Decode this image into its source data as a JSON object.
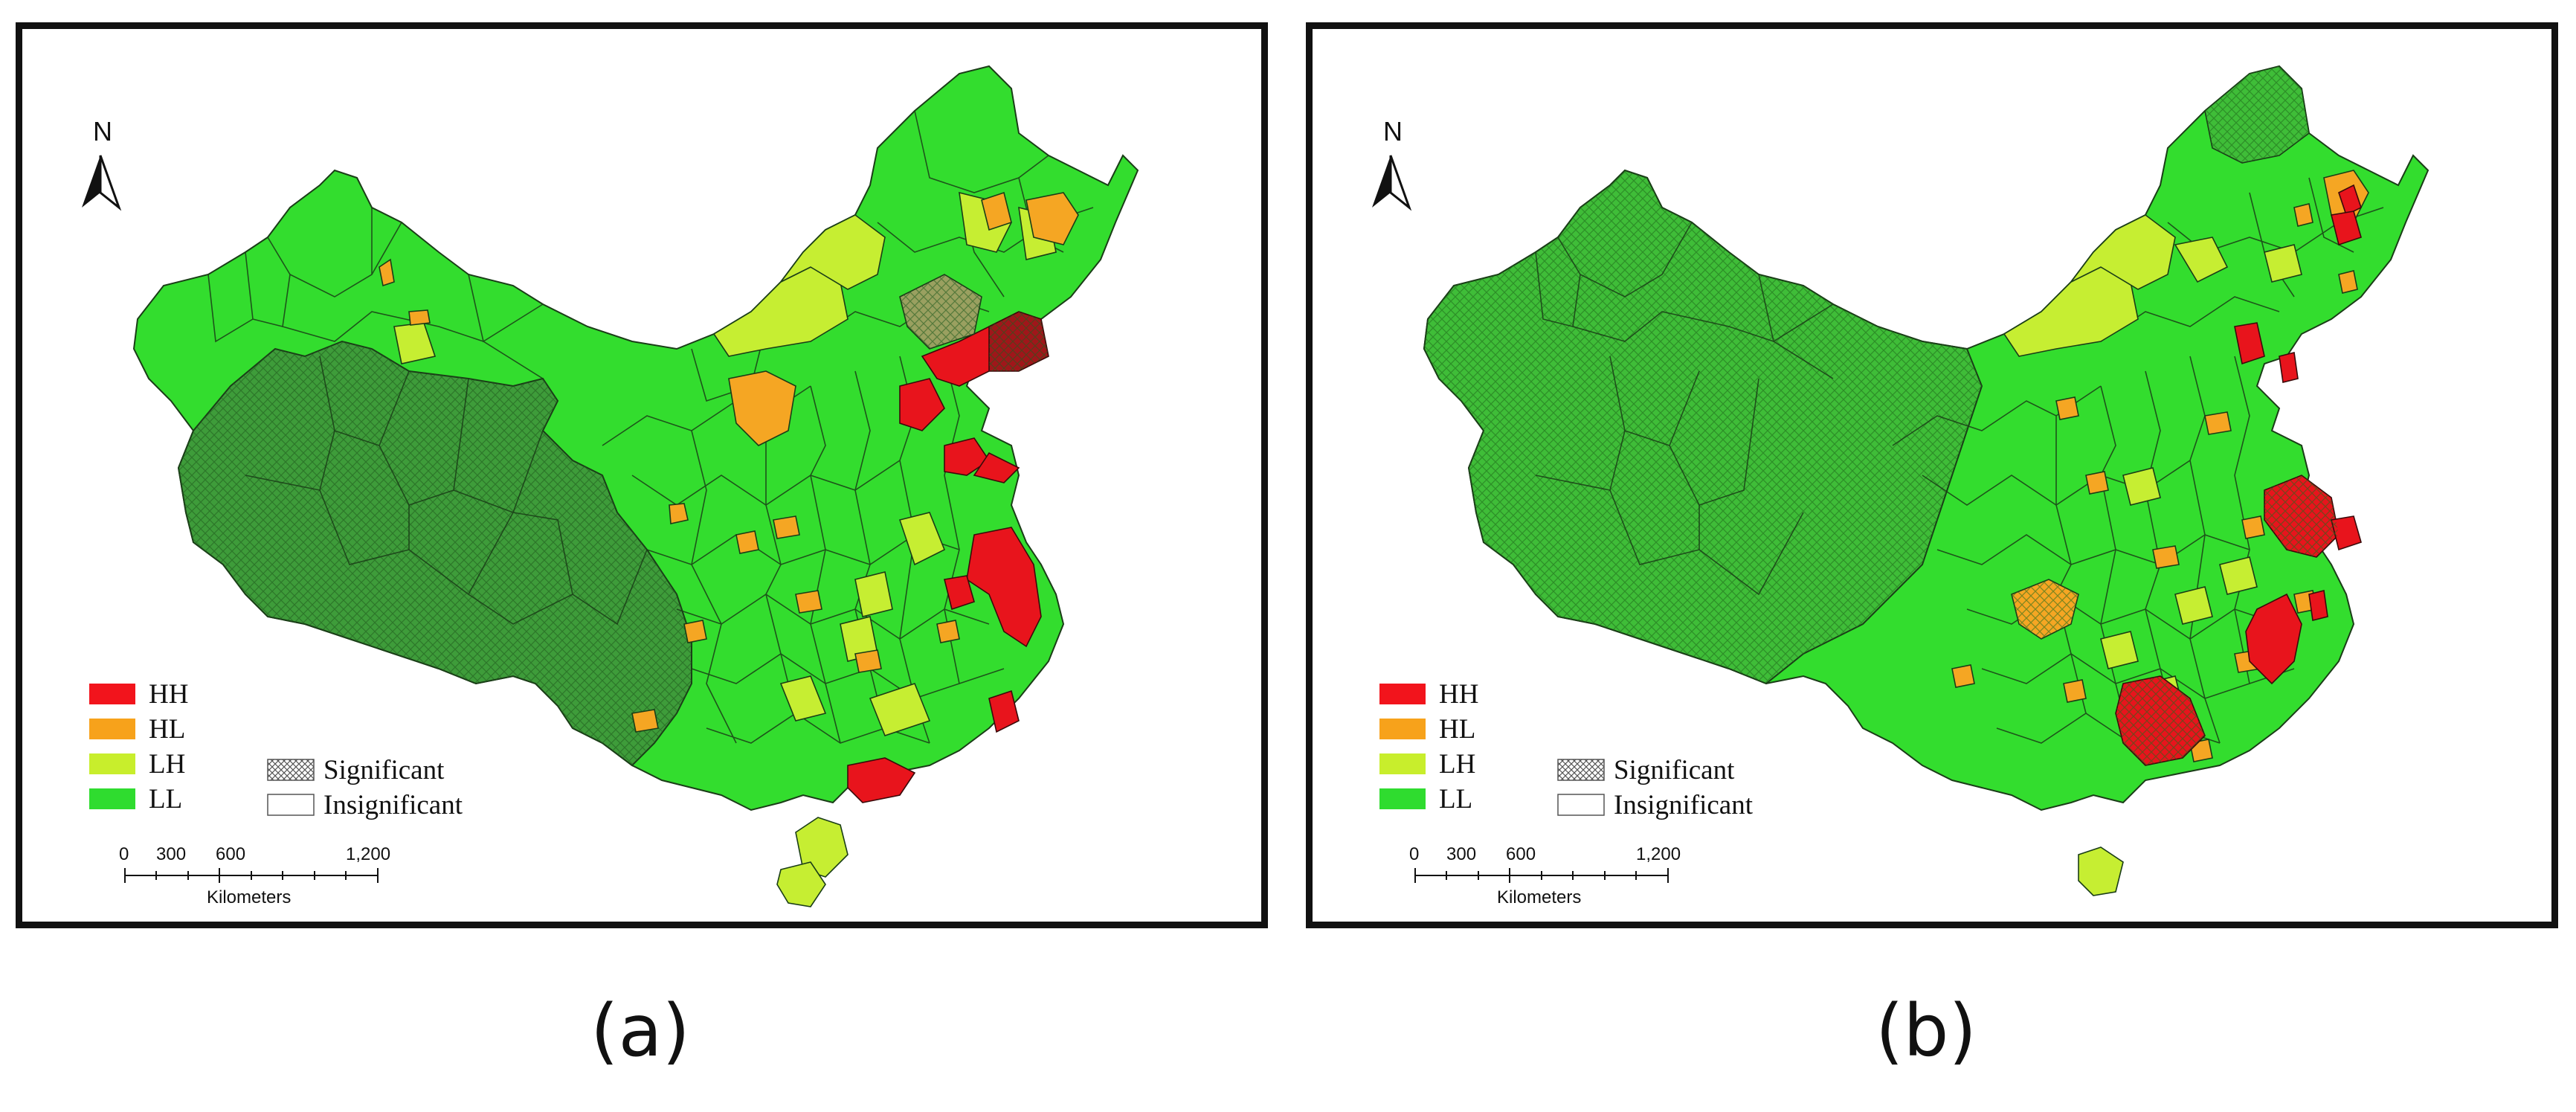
{
  "panels": [
    {
      "id": "a",
      "caption": "(a)",
      "north_label": "N",
      "legend": [
        {
          "label": "HH",
          "color": "#f2141c"
        },
        {
          "label": "HL",
          "color": "#f7a21b"
        },
        {
          "label": "LH",
          "color": "#c8ee2c"
        },
        {
          "label": "LL",
          "color": "#2fdc2f"
        }
      ],
      "significance": [
        {
          "label": "Significant",
          "pattern": "crosshatch"
        },
        {
          "label": "Insignificant",
          "pattern": "none"
        }
      ],
      "scale_ticks": [
        "0",
        "300",
        "600",
        "1,200"
      ],
      "scale_unit": "Kilometers",
      "colors": {
        "ll": "#33dd2e",
        "ll_sig": "#3e9c3a",
        "lh": "#c6ee32",
        "hl": "#f5a623",
        "hh": "#e8141c",
        "hh_sig": "#a0161a"
      }
    },
    {
      "id": "b",
      "caption": "(b)",
      "north_label": "N",
      "legend": [
        {
          "label": "HH",
          "color": "#f2141c"
        },
        {
          "label": "HL",
          "color": "#f7a21b"
        },
        {
          "label": "LH",
          "color": "#c8ee2c"
        },
        {
          "label": "LL",
          "color": "#2fdc2f"
        }
      ],
      "significance": [
        {
          "label": "Significant",
          "pattern": "crosshatch"
        },
        {
          "label": "Insignificant",
          "pattern": "none"
        }
      ],
      "scale_ticks": [
        "0",
        "300",
        "600",
        "1,200"
      ],
      "scale_unit": "Kilometers",
      "colors": {
        "ll": "#33dd2e",
        "ll_sig": "#3fbd38",
        "lh": "#c6ee32",
        "hl": "#f5a623",
        "hh": "#e8141c",
        "hh_sig": "#c0141a"
      }
    }
  ]
}
